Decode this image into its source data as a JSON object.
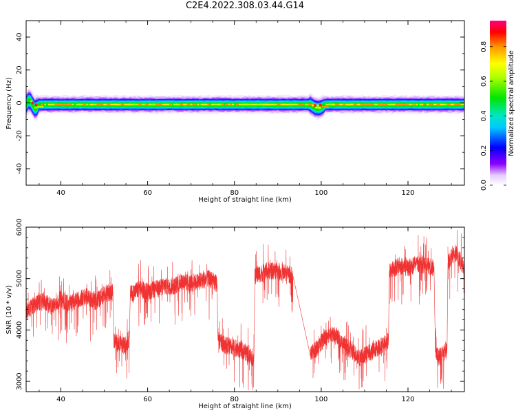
{
  "title": "C2E4.2022.308.03.44.G14",
  "chart_data": [
    {
      "type": "heatmap",
      "xlabel": "Height of straight line (km)",
      "ylabel": "Frequency (Hz)",
      "xlim": [
        32,
        133
      ],
      "ylim": [
        -50,
        50
      ],
      "xticks": [
        40,
        60,
        80,
        100,
        120
      ],
      "yticks": [
        40,
        20,
        0,
        -20,
        -40
      ],
      "colorbar": {
        "label": "Normalized spectral amplitude",
        "range": [
          0,
          0.95
        ],
        "ticks": [
          "0.0",
          "0.2",
          "0.4",
          "0.6",
          "0.8"
        ],
        "tick_values": [
          0.0,
          0.2,
          0.4,
          0.6,
          0.8
        ]
      },
      "band": {
        "center_hz": -1,
        "halfwidth_hz": 5,
        "notes": "narrow band around 0 Hz, distortion near 33 km and 99 km"
      }
    },
    {
      "type": "line",
      "xlabel": "Height of straight line (km)",
      "ylabel": "SNR (10 * v/v)",
      "xlim": [
        32,
        133
      ],
      "ylim": [
        2800,
        6000
      ],
      "xticks": [
        40,
        60,
        80,
        100,
        120
      ],
      "yticks": [
        3000,
        4000,
        5000,
        6000
      ],
      "color": "#f03232",
      "segments": [
        {
          "x": [
            32,
            34,
            36,
            38,
            40,
            42,
            44,
            46,
            48,
            50,
            52
          ],
          "y": [
            4350,
            4500,
            4550,
            4450,
            4600,
            4500,
            4600,
            4650,
            4550,
            4700,
            4750
          ]
        },
        {
          "x": [
            52.2,
            53,
            54,
            55,
            55.8
          ],
          "y": [
            3800,
            3750,
            3700,
            3700,
            3850
          ]
        },
        {
          "x": [
            56,
            58,
            60,
            62,
            64,
            66,
            68,
            70,
            72,
            74,
            76
          ],
          "y": [
            4700,
            4800,
            4750,
            4800,
            4850,
            4850,
            4950,
            4900,
            4950,
            5000,
            4900
          ]
        },
        {
          "x": [
            76.2,
            78,
            80,
            82,
            84.5
          ],
          "y": [
            3800,
            3700,
            3650,
            3600,
            3450
          ]
        },
        {
          "x": [
            84.7,
            86,
            88,
            90,
            92,
            93.5
          ],
          "y": [
            5050,
            5100,
            5150,
            5150,
            5100,
            5050
          ]
        },
        {
          "x": [
            97.5,
            99,
            101,
            103,
            105,
            107,
            109,
            111,
            113,
            115.5
          ],
          "y": [
            3500,
            3650,
            3850,
            3950,
            3700,
            3600,
            3450,
            3550,
            3650,
            3800
          ]
        },
        {
          "x": [
            115.7,
            118,
            120,
            122,
            124,
            126
          ],
          "y": [
            5150,
            5250,
            5200,
            5300,
            5250,
            5200
          ]
        },
        {
          "x": [
            126.3,
            127,
            128,
            129
          ],
          "y": [
            3650,
            3450,
            3550,
            3600
          ]
        },
        {
          "x": [
            129.2,
            130,
            131,
            132,
            133
          ],
          "y": [
            5300,
            5450,
            5500,
            5350,
            5200
          ]
        }
      ],
      "noise_amplitude": 380
    }
  ]
}
